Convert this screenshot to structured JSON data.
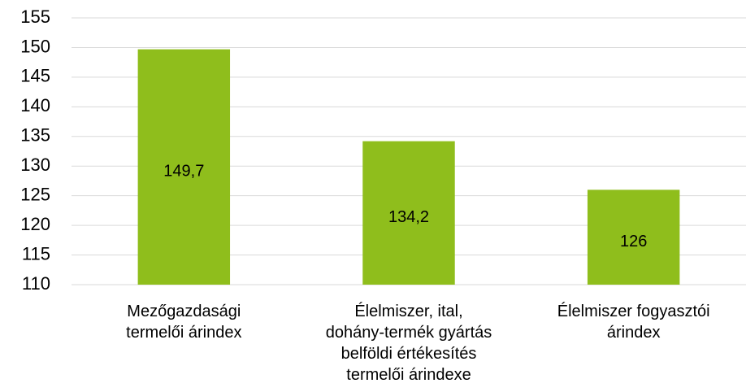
{
  "chart_data": {
    "type": "bar",
    "categories": [
      "Mezőgazdasági\ntermelői árindex",
      "Élelmiszer, ital,\ndohány-termék gyártás\nbelföldi értékesítés\ntermelői árindexe",
      "Élelmiszer fogyasztói\nárindex"
    ],
    "values": [
      149.7,
      134.2,
      126
    ],
    "value_labels": [
      "149,7",
      "134,2",
      "126"
    ],
    "color": "#8fbe1c",
    "ylim": [
      110,
      155
    ],
    "yticks": [
      110,
      115,
      120,
      125,
      130,
      135,
      140,
      145,
      150,
      155
    ],
    "grid": true
  }
}
